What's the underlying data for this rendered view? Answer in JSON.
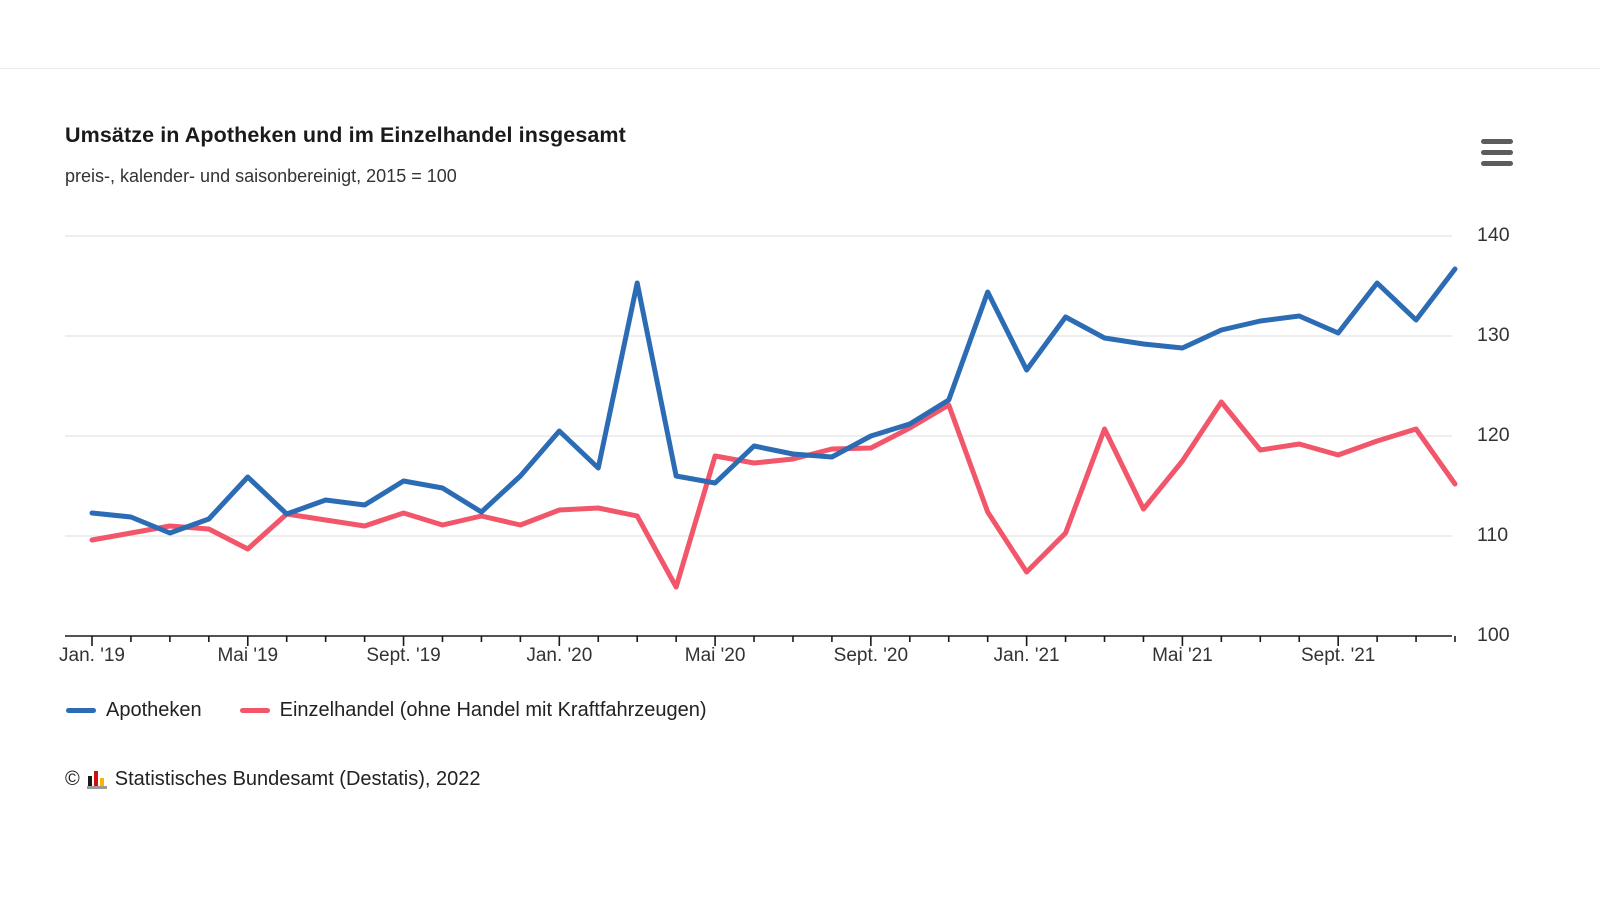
{
  "header": {
    "title": "Umsätze in Apotheken und im Einzelhandel insgesamt",
    "subtitle": "preis-, kalender- und saisonbereinigt, 2015 = 100"
  },
  "menu": {
    "icon": "hamburger-icon"
  },
  "chart_data": {
    "type": "line",
    "x_unit": "month",
    "x_range_months": [
      "Jan 2019",
      "Dez 2021"
    ],
    "x_tick_labels": [
      "Jan. '19",
      "Mai '19",
      "Sept. '19",
      "Jan. '20",
      "Mai '20",
      "Sept. '20",
      "Jan. '21",
      "Mai '21",
      "Sept. '21"
    ],
    "x_major_tick_every": 4,
    "yticks": [
      100,
      110,
      120,
      130,
      140
    ],
    "ylim": [
      100,
      141.5
    ],
    "grid": true,
    "legend_position": "bottom-left",
    "series": [
      {
        "name": "Apotheken",
        "color": "#2c6cb4",
        "values": [
          112.3,
          111.9,
          110.3,
          111.7,
          115.9,
          112.2,
          113.6,
          113.1,
          115.5,
          114.8,
          112.4,
          116.0,
          120.5,
          116.8,
          135.3,
          116.0,
          115.3,
          119.0,
          118.2,
          117.9,
          120.0,
          121.2,
          123.6,
          134.4,
          126.6,
          131.9,
          129.8,
          129.2,
          128.8,
          130.6,
          131.5,
          132.0,
          130.3,
          135.3,
          131.6,
          136.7
        ]
      },
      {
        "name": "Einzelhandel (ohne Handel mit Kraftfahrzeugen)",
        "color": "#f2566a",
        "values": [
          109.6,
          110.3,
          111.0,
          110.7,
          108.7,
          112.2,
          111.6,
          111.0,
          112.3,
          111.1,
          112.0,
          111.1,
          112.6,
          112.8,
          112.0,
          104.9,
          118.0,
          117.3,
          117.7,
          118.7,
          118.8,
          120.8,
          123.1,
          112.4,
          106.4,
          110.3,
          120.7,
          112.7,
          117.5,
          123.4,
          118.6,
          119.2,
          118.1,
          119.5,
          120.7,
          115.2
        ]
      }
    ],
    "axis_color": "#1a1a1a",
    "gridline_color": "#e4e4e4"
  },
  "footer": {
    "copyright": "©",
    "text": "Statistisches Bundesamt (Destatis), 2022"
  }
}
